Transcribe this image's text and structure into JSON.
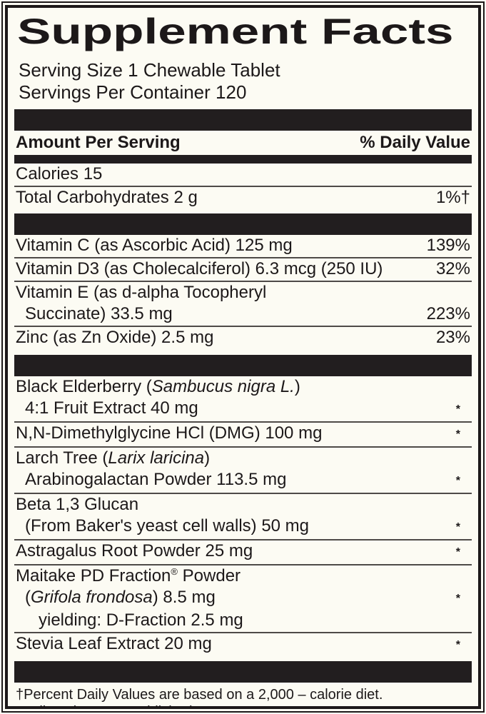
{
  "colors": {
    "background": "#FCFBF3",
    "ink": "#1C1819",
    "bar": "#221E1F",
    "separator": "#4E4A48"
  },
  "header": {
    "title": "Supplement Facts",
    "serving_size": "Serving Size 1 Chewable Tablet",
    "servings_per_container": "Servings Per Container 120"
  },
  "columns": {
    "left": "Amount Per Serving",
    "right": "% Daily Value"
  },
  "rows": {
    "calories": {
      "text": "Calories 15",
      "dv": ""
    },
    "total_carbohydrates": {
      "text": "Total Carbohydrates 2 g",
      "dv": "1%†"
    },
    "vitamin_c": {
      "text": "Vitamin C (as Ascorbic Acid) 125 mg",
      "dv": "139%"
    },
    "vitamin_d3": {
      "text": "Vitamin D3 (as Cholecalciferol) 6.3 mcg (250 IU)",
      "dv": "32%"
    },
    "vitamin_e": {
      "line1": "Vitamin E (as d-alpha Tocopheryl",
      "line2": "Succinate) 33.5 mg",
      "dv": "223%"
    },
    "zinc": {
      "text": "Zinc (as Zn Oxide) 2.5 mg",
      "dv": "23%"
    },
    "black_elderberry": {
      "line1_pre": "Black Elderberry (",
      "line1_italic": "Sambucus nigra L.",
      "line1_post": ")",
      "line2": "4:1 Fruit Extract 40 mg",
      "dv": "*"
    },
    "dmg": {
      "text": "N,N-Dimethylglycine HCl (DMG) 100 mg",
      "dv": "*"
    },
    "larch": {
      "line1_pre": "Larch Tree (",
      "line1_italic": "Larix laricina",
      "line1_post": ")",
      "line2": "Arabinogalactan Powder 113.5 mg",
      "dv": "*"
    },
    "beta_glucan": {
      "line1": "Beta 1,3 Glucan",
      "line2": "(From Baker's yeast cell walls) 50 mg",
      "dv": "*"
    },
    "astragalus": {
      "text": "Astragalus Root Powder 25 mg",
      "dv": "*"
    },
    "maitake": {
      "line1_pre": "Maitake PD Fraction",
      "line1_trademark": "®",
      "line1_post": " Powder",
      "line2_pre": "(",
      "line2_italic": "Grifola frondosa",
      "line2_post": ") 8.5 mg",
      "line3": "yielding: D-Fraction 2.5 mg",
      "dv": "*"
    },
    "stevia": {
      "text": "Stevia Leaf Extract 20 mg",
      "dv": "*"
    }
  },
  "footnotes": {
    "daily_value": "†Percent Daily Values are based on a 2,000 – calorie diet.",
    "not_established": "*Daily Value not established"
  }
}
